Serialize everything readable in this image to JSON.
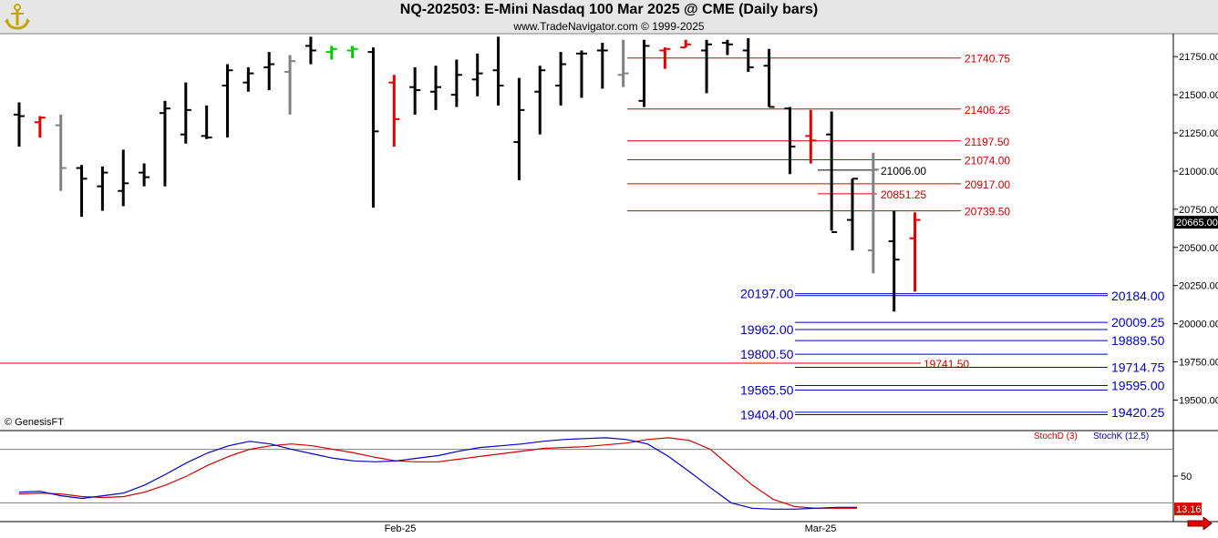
{
  "header": {
    "title": "NQ-202503:  E-Mini Nasdaq 100 Mar 2025 @ CME  (Daily bars)",
    "subtitle": "www.TradeNavigator.com © 1999-2025"
  },
  "watermark": "© GenesisFT",
  "colors": {
    "background": "#ffffff",
    "up_bar": "#000000",
    "down_bar": "#e00000",
    "neutral_bar": "#808080",
    "green_bar": "#00cc00",
    "red_line": "#d00000",
    "blue_line": "#0000c8",
    "stoch_d": "#d00000",
    "stoch_k": "#0000c8"
  },
  "chart_data": [
    {
      "type": "ohlc",
      "title": "NQ-202503:  E-Mini Nasdaq 100 Mar 2025 @ CME  (Daily bars)",
      "x_labels": [
        "Feb-25",
        "Mar-25"
      ],
      "ylim": [
        19300,
        21900
      ],
      "y_ticks": [
        19500,
        19750,
        20000,
        20250,
        20500,
        20750,
        21000,
        21250,
        21500,
        21750
      ],
      "y_tick_labels": [
        "19500.00",
        "19750.00",
        "20000.00",
        "20250.00",
        "20500.00",
        "20750.00",
        "21000.00",
        "21250.00",
        "21500.00",
        "21750.00"
      ],
      "last_price": "20665.00",
      "bars": [
        {
          "o": 21370,
          "h": 21450,
          "l": 21160,
          "c": 21360,
          "color": "black"
        },
        {
          "o": 21320,
          "h": 21360,
          "l": 21220,
          "c": 21350,
          "color": "red"
        },
        {
          "o": 21300,
          "h": 21370,
          "l": 20870,
          "c": 21020,
          "color": "gray"
        },
        {
          "o": 21020,
          "h": 21040,
          "l": 20700,
          "c": 20950,
          "color": "black"
        },
        {
          "o": 20900,
          "h": 21030,
          "l": 20740,
          "c": 20990,
          "color": "black"
        },
        {
          "o": 20870,
          "h": 21140,
          "l": 20770,
          "c": 20920,
          "color": "black"
        },
        {
          "o": 20990,
          "h": 21050,
          "l": 20900,
          "c": 20960,
          "color": "black"
        },
        {
          "o": 21380,
          "h": 21460,
          "l": 20900,
          "c": 21410,
          "color": "black"
        },
        {
          "o": 21240,
          "h": 21580,
          "l": 21180,
          "c": 21400,
          "color": "black"
        },
        {
          "o": 21230,
          "h": 21430,
          "l": 21210,
          "c": 21220,
          "color": "black"
        },
        {
          "o": 21560,
          "h": 21700,
          "l": 21220,
          "c": 21660,
          "color": "black"
        },
        {
          "o": 21580,
          "h": 21680,
          "l": 21520,
          "c": 21640,
          "color": "black"
        },
        {
          "o": 21680,
          "h": 21780,
          "l": 21530,
          "c": 21700,
          "color": "black"
        },
        {
          "o": 21650,
          "h": 21760,
          "l": 21370,
          "c": 21720,
          "color": "gray"
        },
        {
          "o": 21820,
          "h": 21880,
          "l": 21700,
          "c": 21790,
          "color": "black"
        },
        {
          "o": 21780,
          "h": 21820,
          "l": 21730,
          "c": 21800,
          "color": "green"
        },
        {
          "o": 21790,
          "h": 21820,
          "l": 21740,
          "c": 21800,
          "color": "green"
        },
        {
          "o": 21780,
          "h": 21810,
          "l": 20760,
          "c": 21260,
          "color": "black"
        },
        {
          "o": 21580,
          "h": 21630,
          "l": 21160,
          "c": 21340,
          "color": "red"
        },
        {
          "o": 21550,
          "h": 21680,
          "l": 21370,
          "c": 21530,
          "color": "black"
        },
        {
          "o": 21520,
          "h": 21690,
          "l": 21400,
          "c": 21550,
          "color": "black"
        },
        {
          "o": 21500,
          "h": 21730,
          "l": 21420,
          "c": 21630,
          "color": "black"
        },
        {
          "o": 21600,
          "h": 21770,
          "l": 21490,
          "c": 21640,
          "color": "black"
        },
        {
          "o": 21660,
          "h": 21880,
          "l": 21430,
          "c": 21560,
          "color": "black"
        },
        {
          "o": 21190,
          "h": 21610,
          "l": 20940,
          "c": 21400,
          "color": "black"
        },
        {
          "o": 21520,
          "h": 21690,
          "l": 21240,
          "c": 21660,
          "color": "black"
        },
        {
          "o": 21560,
          "h": 21780,
          "l": 21430,
          "c": 21700,
          "color": "black"
        },
        {
          "o": 21770,
          "h": 21790,
          "l": 21480,
          "c": 21770,
          "color": "black"
        },
        {
          "o": 21790,
          "h": 21840,
          "l": 21540,
          "c": 21790,
          "color": "black"
        },
        {
          "o": 21630,
          "h": 21860,
          "l": 21550,
          "c": 21640,
          "color": "gray"
        },
        {
          "o": 21460,
          "h": 21860,
          "l": 21420,
          "c": 21820,
          "color": "black"
        },
        {
          "o": 21790,
          "h": 21810,
          "l": 21670,
          "c": 21800,
          "color": "red"
        },
        {
          "o": 21810,
          "h": 21860,
          "l": 21810,
          "c": 21830,
          "color": "red"
        },
        {
          "o": 21790,
          "h": 21860,
          "l": 21510,
          "c": 21830,
          "color": "black"
        },
        {
          "o": 21840,
          "h": 21860,
          "l": 21760,
          "c": 21830,
          "color": "black"
        },
        {
          "o": 21790,
          "h": 21870,
          "l": 21650,
          "c": 21680,
          "color": "black"
        },
        {
          "o": 21690,
          "h": 21800,
          "l": 21420,
          "c": 21420,
          "color": "black"
        },
        {
          "o": 21410,
          "h": 21420,
          "l": 20980,
          "c": 21160,
          "color": "black"
        },
        {
          "o": 21230,
          "h": 21400,
          "l": 21050,
          "c": 21200,
          "color": "red"
        },
        {
          "o": 21240,
          "h": 21390,
          "l": 20610,
          "c": 20600,
          "color": "black"
        },
        {
          "o": 20680,
          "h": 20950,
          "l": 20480,
          "c": 20950,
          "color": "black"
        },
        {
          "o": 20480,
          "h": 21120,
          "l": 20330,
          "c": 21010,
          "color": "gray"
        },
        {
          "o": 20540,
          "h": 20740,
          "l": 20080,
          "c": 20420,
          "color": "black"
        },
        {
          "o": 20560,
          "h": 20730,
          "l": 20210,
          "c": 20680,
          "color": "red"
        }
      ],
      "levels_red": [
        {
          "value": 21740.75,
          "label": "21740.75"
        },
        {
          "value": 21406.25,
          "label": "21406.25"
        },
        {
          "value": 21197.5,
          "label": "21197.50"
        },
        {
          "value": 21074.0,
          "label": "21074.00"
        },
        {
          "value": 21006.0,
          "label": "21006.00",
          "black": true
        },
        {
          "value": 20917.0,
          "label": "20917.00"
        },
        {
          "value": 20851.25,
          "label": "20851.25"
        },
        {
          "value": 20739.5,
          "label": "20739.50"
        },
        {
          "value": 19741.5,
          "label": "19741.50"
        }
      ],
      "levels_blue_left": [
        {
          "value": 20197.0,
          "label": "20197.00"
        },
        {
          "value": 19962.0,
          "label": "19962.00"
        },
        {
          "value": 19800.5,
          "label": "19800.50"
        },
        {
          "value": 19565.5,
          "label": "19565.50"
        },
        {
          "value": 19404.0,
          "label": "19404.00"
        }
      ],
      "levels_blue_right": [
        {
          "value": 20184.0,
          "label": "20184.00"
        },
        {
          "value": 20009.25,
          "label": "20009.25"
        },
        {
          "value": 19889.5,
          "label": "19889.50"
        },
        {
          "value": 19714.75,
          "label": "19714.75"
        },
        {
          "value": 19595.0,
          "label": "19595.00"
        },
        {
          "value": 19420.25,
          "label": "19420.25"
        }
      ]
    },
    {
      "type": "line",
      "title": "",
      "legend": [
        "StochD (3)",
        "StochK (12,5)"
      ],
      "ylim": [
        0,
        100
      ],
      "y_ticks": [
        50
      ],
      "y_tick_labels": [
        "50"
      ],
      "reference_lines": [
        80,
        20
      ],
      "last_value": "13.16",
      "series": [
        {
          "name": "StochD (3)",
          "values": [
            30,
            31,
            30,
            27,
            26,
            27,
            32,
            40,
            50,
            62,
            72,
            80,
            84,
            86,
            84,
            80,
            76,
            71,
            67,
            66,
            66,
            69,
            72,
            75,
            78,
            81,
            82,
            83,
            85,
            87,
            91,
            93,
            90,
            80,
            60,
            40,
            24,
            16,
            14,
            14,
            14
          ]
        },
        {
          "name": "StochK (12,5)",
          "values": [
            32,
            33,
            28,
            25,
            28,
            31,
            40,
            52,
            65,
            76,
            84,
            89,
            86,
            80,
            75,
            70,
            67,
            66,
            67,
            70,
            73,
            78,
            82,
            84,
            86,
            89,
            91,
            92,
            93,
            91,
            86,
            72,
            55,
            37,
            20,
            14,
            13,
            13,
            14,
            15,
            15
          ]
        }
      ]
    }
  ]
}
